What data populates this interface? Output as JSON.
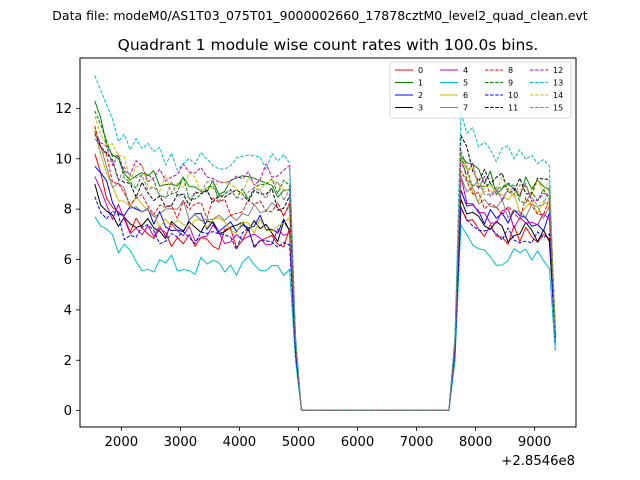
{
  "figure": {
    "suptitle": "Data file: modeM0/AS1T03_075T01_9000002660_17878cztM0_level2_quad_clean.evt"
  },
  "chart_data": {
    "type": "line",
    "title": "Quadrant 1 module wise count rates with 100.0s bins.",
    "xlabel": "",
    "ylabel": "",
    "x_offset_label": "+2.8546e8",
    "xlim": [
      1300,
      9700
    ],
    "ylim": [
      -0.65,
      14.0
    ],
    "x_ticks": [
      2000,
      3000,
      4000,
      5000,
      6000,
      7000,
      8000,
      9000
    ],
    "y_ticks": [
      0,
      2,
      4,
      6,
      8,
      10,
      12
    ],
    "grid": false,
    "legend": "top-right, 4 columns",
    "segments": [
      {
        "x_start": 1550,
        "x_end": 4850,
        "step": 100
      },
      {
        "x_start": 4950,
        "x_end": 4950,
        "step": 100
      },
      {
        "x_start": 5050,
        "x_end": 7550,
        "step": 100
      },
      {
        "x_start": 7650,
        "x_end": 9250,
        "step": 100
      },
      {
        "x_start": 9350,
        "x_end": 9350,
        "step": 100
      }
    ],
    "series": [
      {
        "name": "0",
        "color": "#ff0000",
        "dash": false,
        "level1": 6.8,
        "level2": 6.9,
        "start": 10.2,
        "drop": 2.5,
        "end": 3.0
      },
      {
        "name": "1",
        "color": "#008000",
        "dash": false,
        "level1": 8.9,
        "level2": 8.8,
        "start": 12.3,
        "drop": 2.8,
        "end": 3.3
      },
      {
        "name": "2",
        "color": "#0000ff",
        "dash": false,
        "level1": 7.5,
        "level2": 7.5,
        "start": 9.7,
        "drop": 2.5,
        "end": 2.8
      },
      {
        "name": "3",
        "color": "#000000",
        "dash": false,
        "level1": 7.1,
        "level2": 7.0,
        "start": 9.0,
        "drop": 2.4,
        "end": 2.9
      },
      {
        "name": "4",
        "color": "#bf00bf",
        "dash": false,
        "level1": 7.0,
        "level2": 7.6,
        "start": 9.3,
        "drop": 2.4,
        "end": 2.8
      },
      {
        "name": "5",
        "color": "#00bfbf",
        "dash": false,
        "level1": 5.7,
        "level2": 6.0,
        "start": 7.7,
        "drop": 2.0,
        "end": 2.4
      },
      {
        "name": "6",
        "color": "#bfbf00",
        "dash": false,
        "level1": 7.5,
        "level2": 8.2,
        "start": 11.2,
        "drop": 2.7,
        "end": 3.2
      },
      {
        "name": "7",
        "color": "#808080",
        "dash": false,
        "level1": 7.9,
        "level2": 7.9,
        "start": 10.8,
        "drop": 2.6,
        "end": 3.1
      },
      {
        "name": "8",
        "color": "#ff0000",
        "dash": true,
        "level1": 8.0,
        "level2": 8.0,
        "start": 11.3,
        "drop": 2.6,
        "end": 3.0
      },
      {
        "name": "9",
        "color": "#008000",
        "dash": true,
        "level1": 8.8,
        "level2": 8.5,
        "start": 11.9,
        "drop": 2.8,
        "end": 3.3
      },
      {
        "name": "10",
        "color": "#0000ff",
        "dash": true,
        "level1": 6.8,
        "level2": 7.0,
        "start": 8.5,
        "drop": 2.3,
        "end": 2.7
      },
      {
        "name": "11",
        "color": "#000000",
        "dash": true,
        "level1": 8.4,
        "level2": 8.9,
        "start": 11.0,
        "drop": 2.7,
        "end": 3.0
      },
      {
        "name": "12",
        "color": "#bf00bf",
        "dash": true,
        "level1": 9.4,
        "level2": 8.6,
        "start": 11.0,
        "drop": 2.9,
        "end": 3.2
      },
      {
        "name": "13",
        "color": "#00bfbf",
        "dash": true,
        "level1": 9.9,
        "level2": 10.0,
        "start": 13.3,
        "drop": 3.0,
        "end": 2.4
      },
      {
        "name": "14",
        "color": "#bfbf00",
        "dash": true,
        "level1": 9.0,
        "level2": 8.7,
        "start": 11.7,
        "drop": 2.8,
        "end": 3.2
      },
      {
        "name": "15",
        "color": "#808080",
        "dash": true,
        "level1": 8.7,
        "level2": 8.5,
        "start": 11.1,
        "drop": 2.7,
        "end": 3.1
      }
    ]
  }
}
